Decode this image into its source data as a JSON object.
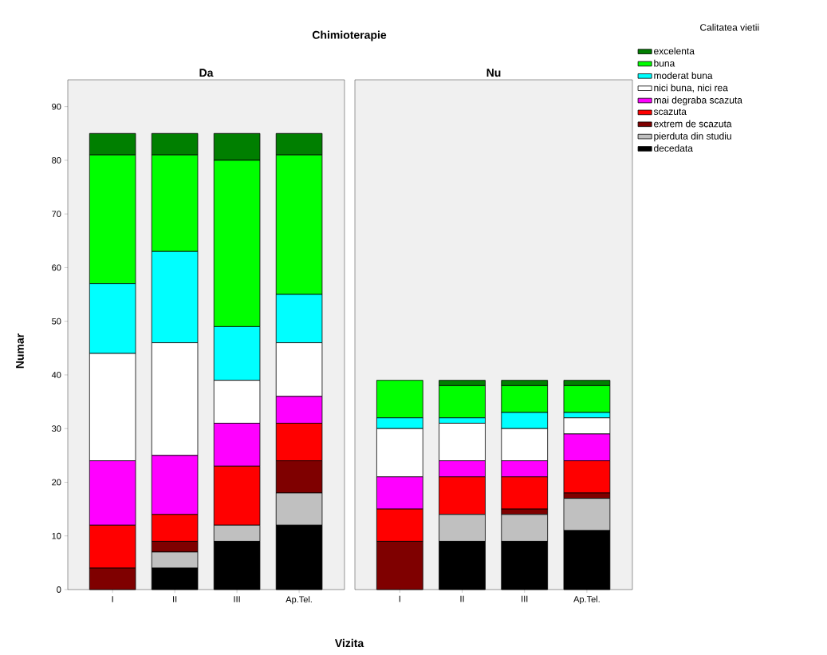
{
  "chart_data": [
    {
      "type": "bar",
      "stacked": true,
      "title": "Chimioterapie",
      "subtitle": "Da",
      "xlabel": "Vizita",
      "ylabel": "Numar",
      "categories": [
        "I",
        "II",
        "III",
        "Ap.Tel."
      ],
      "ylim": [
        0,
        95
      ],
      "yticks": [
        0,
        10,
        20,
        30,
        40,
        50,
        60,
        70,
        80,
        90
      ],
      "legend": false,
      "series": [
        {
          "color": "#000000",
          "values": [
            0,
            4,
            9,
            12
          ]
        },
        {
          "color": "#c0c0c0",
          "values": [
            0,
            3,
            3,
            6
          ]
        },
        {
          "color": "#7f0000",
          "values": [
            4,
            2,
            0,
            6
          ]
        },
        {
          "color": "#ff0000",
          "values": [
            8,
            5,
            11,
            7
          ]
        },
        {
          "color": "#ff00ff",
          "values": [
            12,
            11,
            8,
            5
          ]
        },
        {
          "color": "#ffffff",
          "values": [
            20,
            21,
            8,
            10
          ]
        },
        {
          "color": "#00ffff",
          "values": [
            13,
            17,
            10,
            9
          ]
        },
        {
          "color": "#00ff00",
          "values": [
            24,
            18,
            31,
            26
          ]
        },
        {
          "color": "#007f00",
          "values": [
            4,
            4,
            5,
            4
          ]
        }
      ]
    },
    {
      "type": "bar",
      "stacked": true,
      "subtitle": "Nu",
      "legend_title": "Calitatea vietii",
      "legend": "right",
      "tick_labels": "x",
      "categories": [
        "I",
        "II",
        "III",
        "Ap.Tel."
      ],
      "ylim": [
        0,
        95
      ],
      "yticks": [
        0,
        10,
        20,
        30,
        40,
        50,
        60,
        70,
        80,
        90
      ],
      "series": [
        {
          "name": "decedata",
          "color": "#000000",
          "values": [
            0,
            9,
            9,
            11
          ]
        },
        {
          "name": "pierduta din studiu",
          "color": "#c0c0c0",
          "values": [
            0,
            5,
            5,
            6
          ]
        },
        {
          "name": "extrem de scazuta",
          "color": "#7f0000",
          "values": [
            9,
            0,
            1,
            1
          ]
        },
        {
          "name": "scazuta",
          "color": "#ff0000",
          "values": [
            6,
            7,
            6,
            6
          ]
        },
        {
          "name": "mai degraba scazuta",
          "color": "#ff00ff",
          "values": [
            6,
            3,
            3,
            5
          ]
        },
        {
          "name": "nici buna, nici rea",
          "color": "#ffffff",
          "values": [
            9,
            7,
            6,
            3
          ]
        },
        {
          "name": "moderat buna",
          "color": "#00ffff",
          "values": [
            2,
            1,
            3,
            1
          ]
        },
        {
          "name": "buna",
          "color": "#00ff00",
          "values": [
            7,
            6,
            5,
            5
          ]
        },
        {
          "name": "excelenta",
          "color": "#007f00",
          "values": [
            0,
            1,
            1,
            1
          ]
        }
      ]
    }
  ]
}
